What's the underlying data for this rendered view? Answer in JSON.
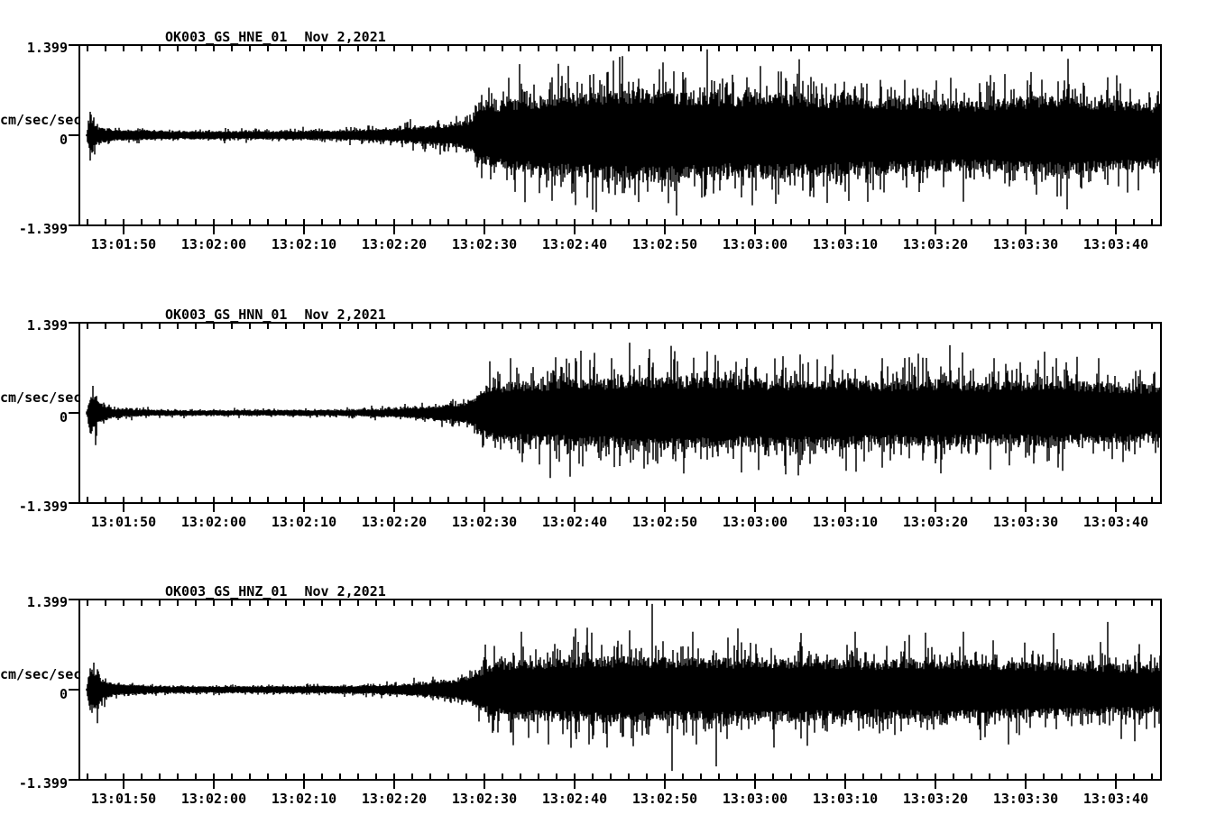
{
  "page": {
    "background": "#ffffff",
    "trace_color": "#000000",
    "text_color": "#000000"
  },
  "chart_data": [
    {
      "type": "line",
      "subtype": "seismogram",
      "title": "OK003_GS_HNE_01",
      "date_label": "Nov 2,2021",
      "ylabel": "cm/sec/sec",
      "ylim": [
        -1.399,
        1.399
      ],
      "ytick_labels": [
        "1.399",
        "0",
        "-1.399"
      ],
      "xtick_labels": [
        "13:01:50",
        "13:02:00",
        "13:02:10",
        "13:02:20",
        "13:02:30",
        "13:02:40",
        "13:02:50",
        "13:03:00",
        "13:03:10",
        "13:03:20",
        "13:03:30",
        "13:03:40"
      ],
      "x_start_time": "13:01:45",
      "x_end_time": "13:03:45",
      "seconds_per_minor_tick": 2,
      "seconds_per_major_tick": 10,
      "grid": false,
      "legend": false,
      "envelope": {
        "t": [
          0.8,
          1.2,
          2.0,
          4,
          10,
          20,
          28,
          33,
          36,
          38,
          41,
          43.5,
          44.5,
          46,
          48,
          52,
          56,
          62,
          66,
          72,
          78,
          84,
          90,
          96,
          100,
          104,
          108,
          112,
          116,
          120
        ],
        "amp": [
          0.02,
          0.3,
          0.12,
          0.08,
          0.06,
          0.06,
          0.07,
          0.09,
          0.11,
          0.13,
          0.16,
          0.22,
          0.42,
          0.48,
          0.52,
          0.58,
          0.62,
          0.68,
          0.66,
          0.6,
          0.62,
          0.58,
          0.55,
          0.52,
          0.5,
          0.55,
          0.58,
          0.55,
          0.5,
          0.48
        ]
      },
      "peaks": [
        [
          1.3,
          0.32
        ],
        [
          1.7,
          -0.3
        ],
        [
          36.7,
          0.25
        ],
        [
          44.0,
          0.45
        ],
        [
          48.3,
          -0.88
        ],
        [
          52.4,
          0.9
        ],
        [
          57.0,
          0.95
        ],
        [
          60.2,
          -0.9
        ],
        [
          64.7,
          1.13
        ],
        [
          69.0,
          -0.97
        ],
        [
          74.0,
          0.9
        ],
        [
          81.0,
          -0.95
        ],
        [
          88.0,
          -0.85
        ],
        [
          95.0,
          0.85
        ],
        [
          102.6,
          0.95
        ],
        [
          105.5,
          0.98
        ],
        [
          109.5,
          -1.15
        ],
        [
          114.0,
          0.9
        ]
      ],
      "seed": 7
    },
    {
      "type": "line",
      "subtype": "seismogram",
      "title": "OK003_GS_HNN_01",
      "date_label": "Nov 2,2021",
      "ylabel": "cm/sec/sec",
      "ylim": [
        -1.399,
        1.399
      ],
      "ytick_labels": [
        "1.399",
        "0",
        "-1.399"
      ],
      "xtick_labels": [
        "13:01:50",
        "13:02:00",
        "13:02:10",
        "13:02:20",
        "13:02:30",
        "13:02:40",
        "13:02:50",
        "13:03:00",
        "13:03:10",
        "13:03:20",
        "13:03:30",
        "13:03:40"
      ],
      "x_start_time": "13:01:45",
      "x_end_time": "13:03:45",
      "seconds_per_minor_tick": 2,
      "seconds_per_major_tick": 10,
      "grid": false,
      "legend": false,
      "envelope": {
        "t": [
          0.8,
          1.3,
          2.2,
          4,
          10,
          20,
          30,
          34,
          37,
          40,
          42,
          43.5,
          44.8,
          46,
          50,
          55,
          60,
          66,
          72,
          78,
          84,
          90,
          96,
          100,
          104,
          108,
          112,
          116,
          120
        ],
        "amp": [
          0.02,
          0.28,
          0.14,
          0.06,
          0.04,
          0.04,
          0.045,
          0.06,
          0.08,
          0.11,
          0.14,
          0.18,
          0.35,
          0.42,
          0.46,
          0.48,
          0.5,
          0.52,
          0.5,
          0.48,
          0.5,
          0.46,
          0.48,
          0.44,
          0.46,
          0.48,
          0.44,
          0.42,
          0.4
        ]
      },
      "peaks": [
        [
          1.5,
          0.42
        ],
        [
          1.8,
          -0.5
        ],
        [
          45.5,
          0.8
        ],
        [
          47.8,
          0.85
        ],
        [
          51.0,
          -0.8
        ],
        [
          55.0,
          0.85
        ],
        [
          59.0,
          0.85
        ],
        [
          61.0,
          1.09
        ],
        [
          63.0,
          -0.8
        ],
        [
          67.0,
          -0.94
        ],
        [
          70.5,
          0.9
        ],
        [
          74.0,
          0.85
        ],
        [
          78.0,
          0.88
        ],
        [
          85.0,
          -0.9
        ],
        [
          89.0,
          0.85
        ],
        [
          93.0,
          0.92
        ],
        [
          96.5,
          1.05
        ],
        [
          101.0,
          -0.88
        ],
        [
          107.0,
          0.95
        ],
        [
          109.0,
          -0.9
        ],
        [
          113.0,
          0.85
        ]
      ],
      "seed": 13
    },
    {
      "type": "line",
      "subtype": "seismogram",
      "title": "OK003_GS_HNZ_01",
      "date_label": "Nov 2,2021",
      "ylabel": "cm/sec/sec",
      "ylim": [
        -1.399,
        1.399
      ],
      "ytick_labels": [
        "1.399",
        "0",
        "-1.399"
      ],
      "xtick_labels": [
        "13:01:50",
        "13:02:00",
        "13:02:10",
        "13:02:20",
        "13:02:30",
        "13:02:40",
        "13:02:50",
        "13:03:00",
        "13:03:10",
        "13:03:20",
        "13:03:30",
        "13:03:40"
      ],
      "x_start_time": "13:01:45",
      "x_end_time": "13:03:45",
      "seconds_per_minor_tick": 2,
      "seconds_per_major_tick": 10,
      "grid": false,
      "legend": false,
      "envelope": {
        "t": [
          0.8,
          1.2,
          2.5,
          4,
          10,
          20,
          30,
          34,
          37,
          40,
          42,
          44,
          45.5,
          48,
          52,
          58,
          64,
          70,
          76,
          82,
          88,
          94,
          100,
          106,
          112,
          116,
          120
        ],
        "amp": [
          0.02,
          0.32,
          0.15,
          0.08,
          0.05,
          0.05,
          0.06,
          0.07,
          0.09,
          0.12,
          0.15,
          0.25,
          0.38,
          0.42,
          0.45,
          0.48,
          0.46,
          0.44,
          0.46,
          0.44,
          0.42,
          0.44,
          0.42,
          0.4,
          0.38,
          0.36,
          0.34
        ]
      },
      "peaks": [
        [
          1.6,
          0.42
        ],
        [
          2.0,
          -0.52
        ],
        [
          45.0,
          0.7
        ],
        [
          49.0,
          0.9
        ],
        [
          52.0,
          -0.85
        ],
        [
          55.0,
          0.95
        ],
        [
          58.5,
          -0.9
        ],
        [
          61.0,
          0.92
        ],
        [
          63.5,
          1.33
        ],
        [
          65.7,
          -1.26
        ],
        [
          68.0,
          0.9
        ],
        [
          70.6,
          -1.19
        ],
        [
          73.0,
          0.95
        ],
        [
          77.0,
          -0.9
        ],
        [
          80.0,
          0.88
        ],
        [
          86.0,
          0.9
        ],
        [
          92.0,
          0.85
        ],
        [
          98.0,
          0.9
        ],
        [
          103.0,
          -0.85
        ],
        [
          108.0,
          0.88
        ],
        [
          114.0,
          1.05
        ],
        [
          117.0,
          -0.8
        ]
      ],
      "seed": 21
    }
  ]
}
